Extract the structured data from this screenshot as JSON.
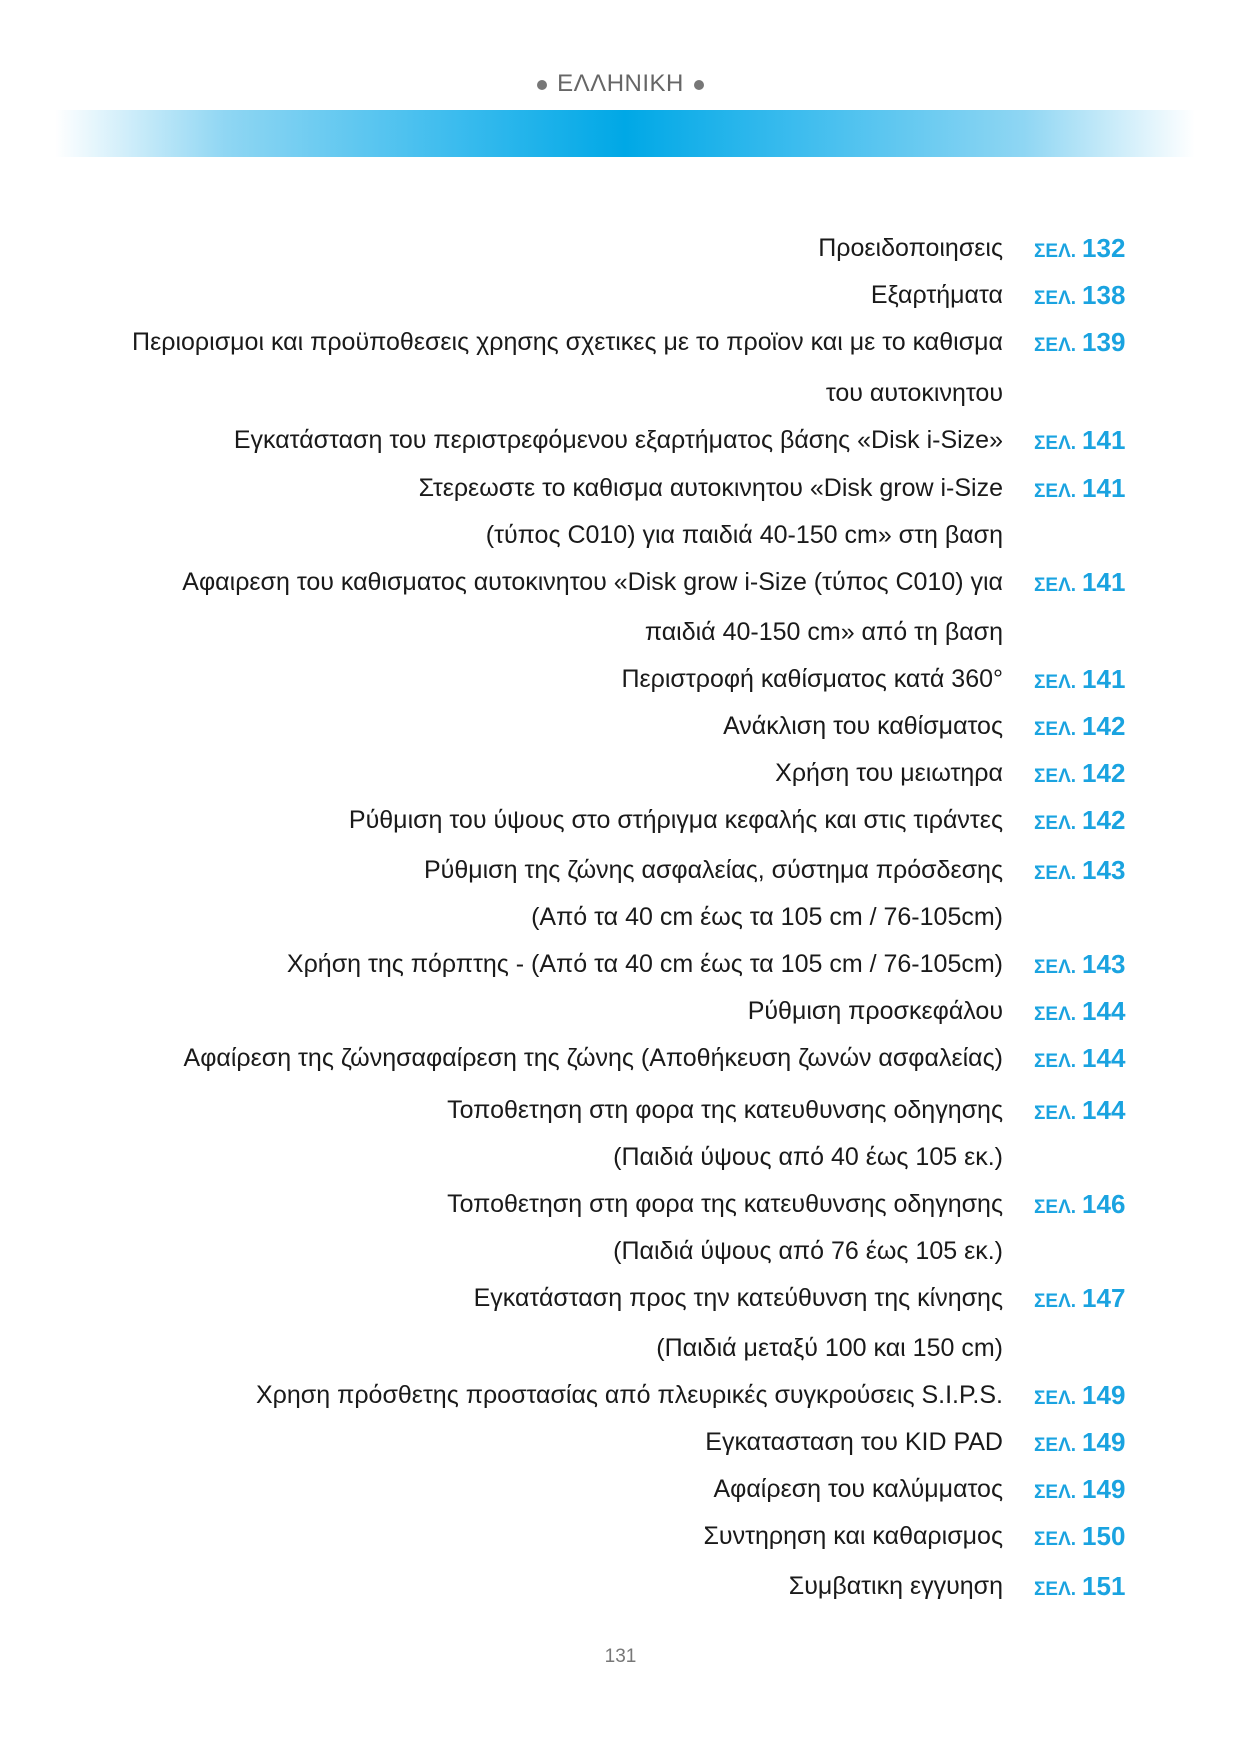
{
  "header": {
    "title": "ΕΛΛΗΝΙΚΗ",
    "accent_color": "#00a8e6"
  },
  "page_label": "ΣΕΛ.",
  "toc": [
    {
      "text": [
        "Προειδοποιησεις"
      ],
      "page": "132"
    },
    {
      "text": [
        "Εξαρτήματα"
      ],
      "page": "138"
    },
    {
      "text": [
        "Περιορισμοι και προϋποθεσεις χρησης σχετικες με το προϊον και με το καθισμα",
        "του αυτοκινητου"
      ],
      "page": "139"
    },
    {
      "text": [
        "Εγκατάσταση του περιστρεφόμενου εξαρτήματος βάσης «Disk i-Size»"
      ],
      "page": "141"
    },
    {
      "text": [
        "Στερεωστε το καθισμα αυτοκινητου «Disk grow i-Size",
        "(τύπος C010) για παιδιά 40-150 cm» στη βαση"
      ],
      "page": "141"
    },
    {
      "text": [
        "Αφαιρεση του καθισματος αυτοκινητου «Disk grow i-Size (τύπος C010) για",
        "παιδιά 40-150 cm» από τη βαση"
      ],
      "page": "141"
    },
    {
      "text": [
        "Περιστροφή καθίσματος κατά 360°"
      ],
      "page": "141"
    },
    {
      "text": [
        "Ανάκλιση του καθίσματος"
      ],
      "page": "142"
    },
    {
      "text": [
        "Χρήση του μειωτηρα"
      ],
      "page": "142"
    },
    {
      "text": [
        "Ρύθμιση του ύψους στο στήριγμα κεφαλής και στις τιράντες"
      ],
      "page": "142"
    },
    {
      "text": [
        "Ρύθμιση της ζώνης ασφαλείας, σύστημα πρόσδεσης",
        "(Από τα 40 cm έως τα 105 cm / 76-105cm)"
      ],
      "page": "143"
    },
    {
      "text": [
        "Χρήση της πόρπτης - (Από τα 40 cm έως τα 105 cm / 76-105cm)"
      ],
      "page": "143"
    },
    {
      "text": [
        "Ρύθμιση προσκεφάλου"
      ],
      "page": "144"
    },
    {
      "text": [
        "Αφαίρεση της ζώνησαφαίρεση της ζώνης (Αποθήκευση ζωνών ασφαλείας)"
      ],
      "page": "144"
    },
    {
      "text": [
        "Τοποθετηση στη φορα της κατευθυνσης οδηγησης",
        "(Παιδιά ύψους από 40 έως 105 εκ.)"
      ],
      "page": "144"
    },
    {
      "text": [
        "Τοποθετηση στη φορα της κατευθυνσης οδηγησης",
        "(Παιδιά ύψους από 76 έως 105 εκ.)"
      ],
      "page": "146"
    },
    {
      "text": [
        "Εγκατάσταση προς την κατεύθυνση της κίνησης",
        "(Παιδιά μεταξύ 100 και 150 cm)"
      ],
      "page": "147"
    },
    {
      "text": [
        "Χρηση πρόσθετης προστασίας από πλευρικές συγκρούσεις S.I.P.S."
      ],
      "page": "149"
    },
    {
      "text": [
        "Εγκατασταση του KID PAD"
      ],
      "page": "149"
    },
    {
      "text": [
        "Αφαίρεση του καλύμματος"
      ],
      "page": "149"
    },
    {
      "text": [
        "Συντηρηση και καθαρισμος"
      ],
      "page": "150"
    },
    {
      "text": [
        "Συμβατικη εγγυηση"
      ],
      "page": "151"
    }
  ],
  "page_number": "131"
}
